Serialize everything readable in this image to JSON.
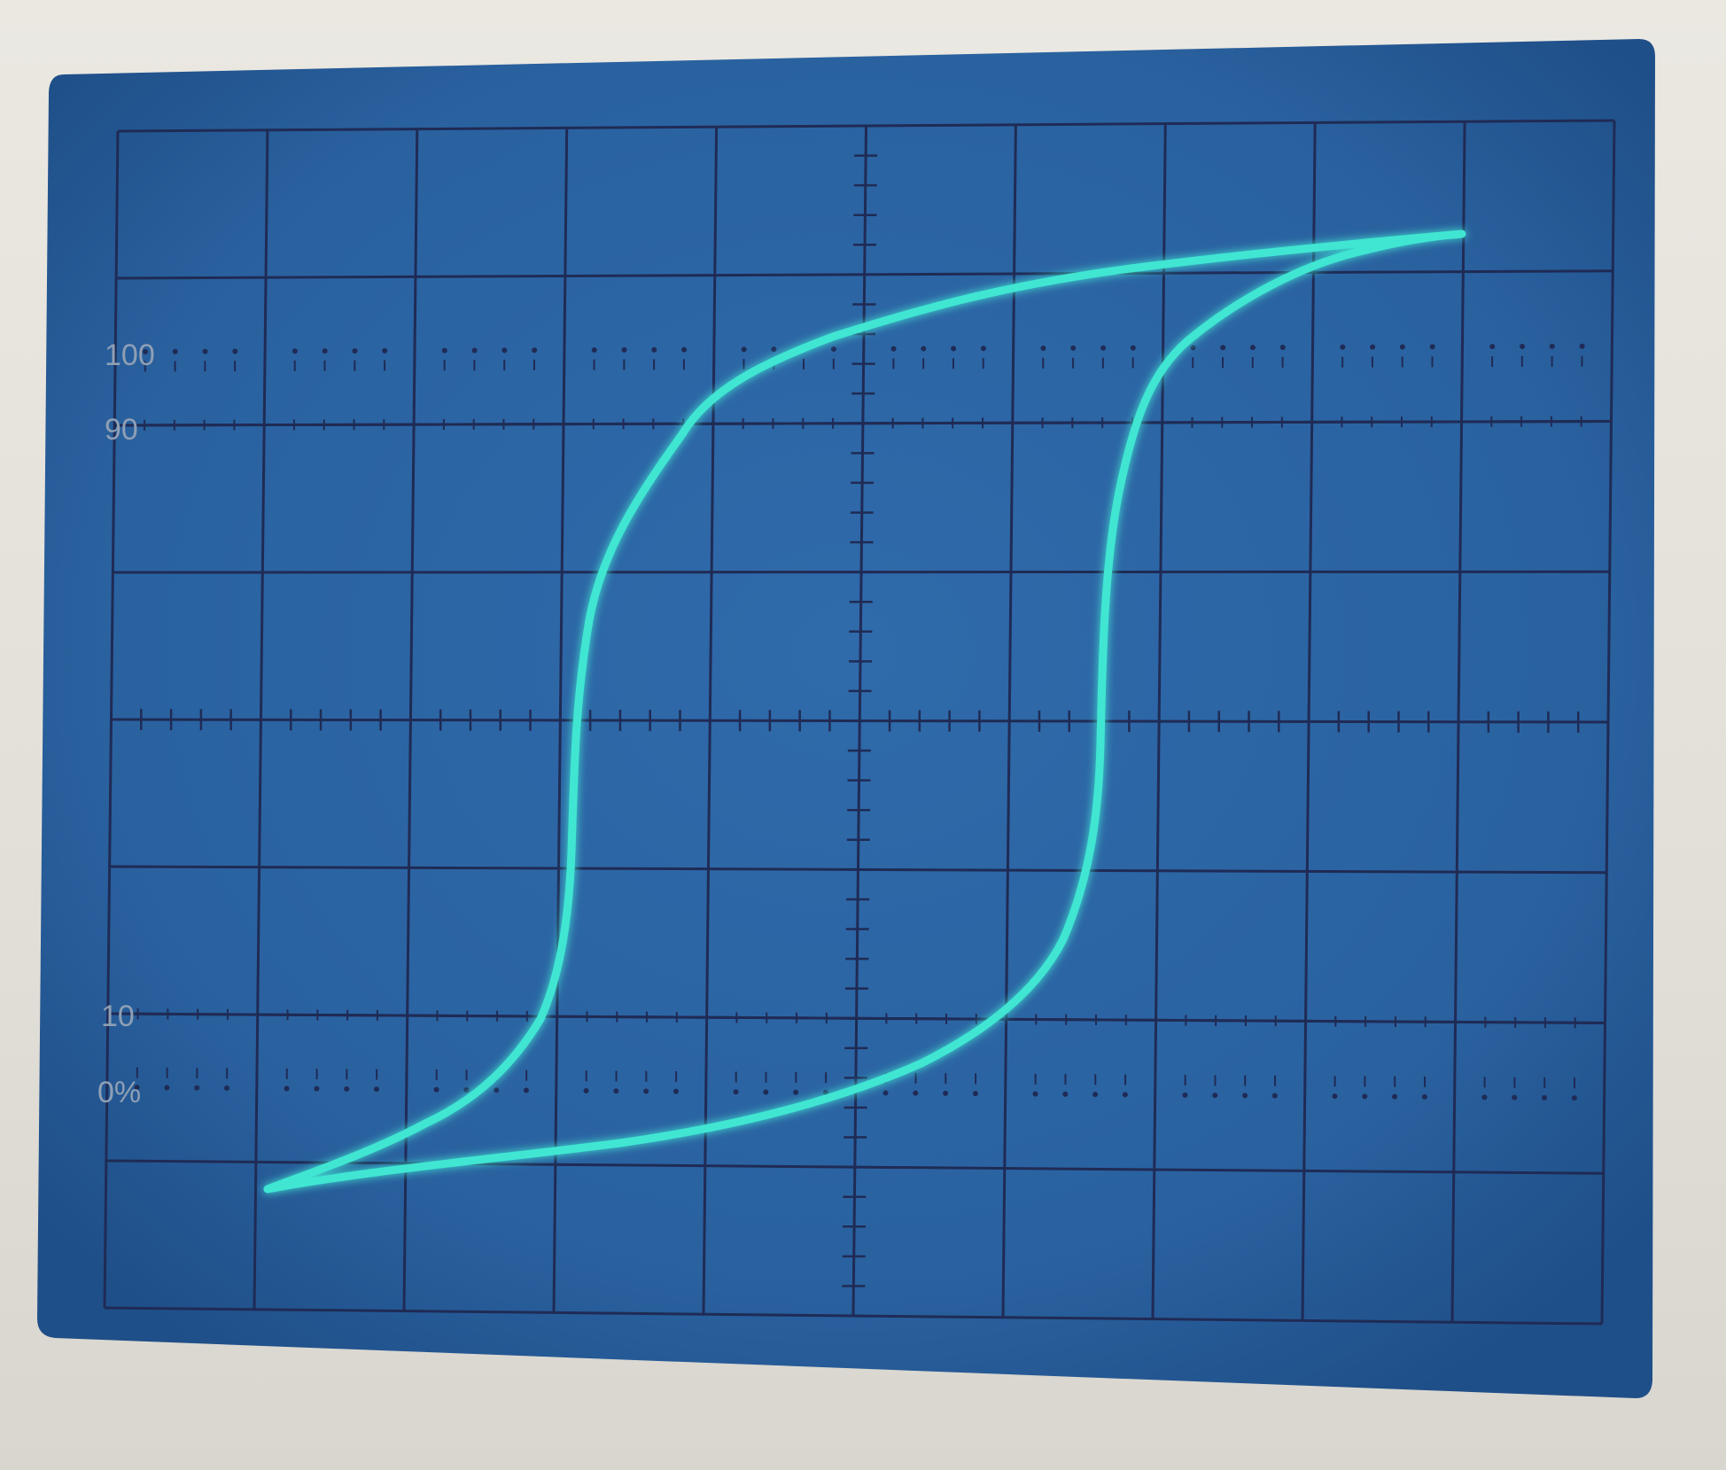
{
  "scope_screen": {
    "graticule": {
      "divisions_x": 10,
      "divisions_y": 8,
      "minor_ticks_per_division": 5
    },
    "rise_time_labels": [
      "100",
      "90",
      "10",
      "0%"
    ],
    "trace": {
      "shape": "hysteresis-loop",
      "color": "#3fe6d2"
    },
    "colors": {
      "screen": "#2a64a2",
      "grid": "#1f2b55",
      "bezel": "#e6e3dc"
    }
  }
}
